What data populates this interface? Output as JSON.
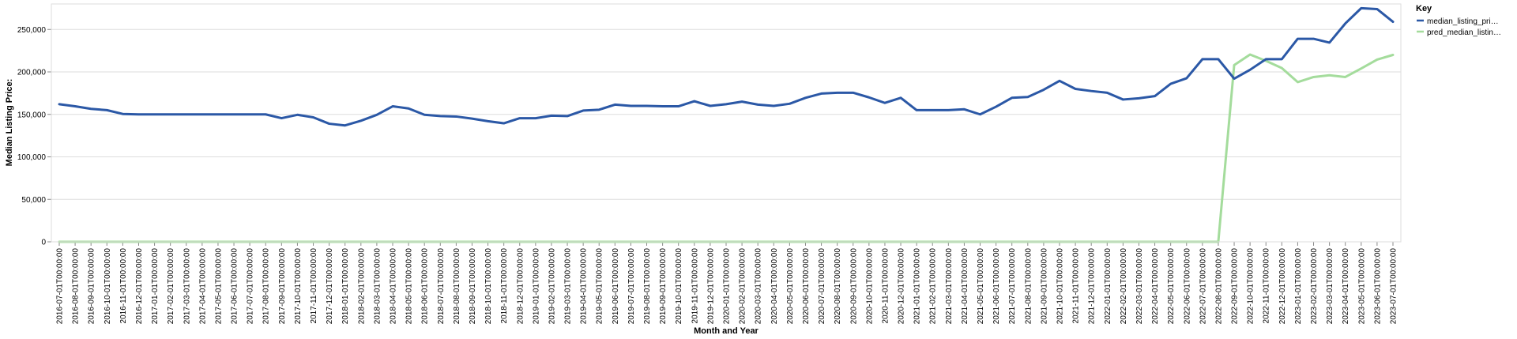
{
  "chart_data": {
    "type": "line",
    "xlabel": "Month and Year",
    "ylabel": "Median Listing Price:",
    "ylim": [
      0,
      280000
    ],
    "yticks": [
      0,
      50000,
      100000,
      150000,
      200000,
      250000
    ],
    "ytick_labels": [
      "0",
      "50,000",
      "100,000",
      "150,000",
      "200,000",
      "250,000"
    ],
    "grid": true,
    "legend": {
      "title": "Key",
      "position": "top-right",
      "items": [
        {
          "label": "median_listing_pri…",
          "color": "#2b58a6"
        },
        {
          "label": "pred_median_listin…",
          "color": "#a4dc9c"
        }
      ]
    },
    "x": [
      "2016-07-01T00:00:00",
      "2016-08-01T00:00:00",
      "2016-09-01T00:00:00",
      "2016-10-01T00:00:00",
      "2016-11-01T00:00:00",
      "2016-12-01T00:00:00",
      "2017-01-01T00:00:00",
      "2017-02-01T00:00:00",
      "2017-03-01T00:00:00",
      "2017-04-01T00:00:00",
      "2017-05-01T00:00:00",
      "2017-06-01T00:00:00",
      "2017-07-01T00:00:00",
      "2017-08-01T00:00:00",
      "2017-09-01T00:00:00",
      "2017-10-01T00:00:00",
      "2017-11-01T00:00:00",
      "2017-12-01T00:00:00",
      "2018-01-01T00:00:00",
      "2018-02-01T00:00:00",
      "2018-03-01T00:00:00",
      "2018-04-01T00:00:00",
      "2018-05-01T00:00:00",
      "2018-06-01T00:00:00",
      "2018-07-01T00:00:00",
      "2018-08-01T00:00:00",
      "2018-09-01T00:00:00",
      "2018-10-01T00:00:00",
      "2018-11-01T00:00:00",
      "2018-12-01T00:00:00",
      "2019-01-01T00:00:00",
      "2019-02-01T00:00:00",
      "2019-03-01T00:00:00",
      "2019-04-01T00:00:00",
      "2019-05-01T00:00:00",
      "2019-06-01T00:00:00",
      "2019-07-01T00:00:00",
      "2019-08-01T00:00:00",
      "2019-09-01T00:00:00",
      "2019-10-01T00:00:00",
      "2019-11-01T00:00:00",
      "2019-12-01T00:00:00",
      "2020-01-01T00:00:00",
      "2020-02-01T00:00:00",
      "2020-03-01T00:00:00",
      "2020-04-01T00:00:00",
      "2020-05-01T00:00:00",
      "2020-06-01T00:00:00",
      "2020-07-01T00:00:00",
      "2020-08-01T00:00:00",
      "2020-09-01T00:00:00",
      "2020-10-01T00:00:00",
      "2020-11-01T00:00:00",
      "2020-12-01T00:00:00",
      "2021-01-01T00:00:00",
      "2021-02-01T00:00:00",
      "2021-03-01T00:00:00",
      "2021-04-01T00:00:00",
      "2021-05-01T00:00:00",
      "2021-06-01T00:00:00",
      "2021-07-01T00:00:00",
      "2021-08-01T00:00:00",
      "2021-09-01T00:00:00",
      "2021-10-01T00:00:00",
      "2021-11-01T00:00:00",
      "2021-12-01T00:00:00",
      "2022-01-01T00:00:00",
      "2022-02-01T00:00:00",
      "2022-03-01T00:00:00",
      "2022-04-01T00:00:00",
      "2022-05-01T00:00:00",
      "2022-06-01T00:00:00",
      "2022-07-01T00:00:00",
      "2022-08-01T00:00:00",
      "2022-09-01T00:00:00",
      "2022-10-01T00:00:00",
      "2022-11-01T00:00:00",
      "2022-12-01T00:00:00",
      "2023-01-01T00:00:00",
      "2023-02-01T00:00:00",
      "2023-03-01T00:00:00",
      "2023-04-01T00:00:00",
      "2023-05-01T00:00:00",
      "2023-06-01T00:00:00",
      "2023-07-01T00:00:00"
    ],
    "series": [
      {
        "name": "median_listing_pri…",
        "color": "#2b58a6",
        "values": [
          162000,
          159500,
          156500,
          155000,
          150500,
          150000,
          150000,
          150000,
          150000,
          150000,
          150000,
          150000,
          150000,
          150000,
          145500,
          149500,
          146500,
          139000,
          137000,
          142500,
          149500,
          159500,
          157000,
          149500,
          148000,
          147500,
          145000,
          142000,
          139500,
          145500,
          145500,
          148500,
          148000,
          154500,
          155500,
          161500,
          160000,
          160000,
          159500,
          159500,
          165500,
          160000,
          162000,
          165000,
          161500,
          160000,
          162500,
          169500,
          174500,
          175500,
          175500,
          170000,
          163500,
          169500,
          155000,
          155000,
          155000,
          156000,
          150000,
          159000,
          169500,
          170500,
          179000,
          189500,
          180000,
          177500,
          175500,
          167500,
          169000,
          171500,
          186000,
          192500,
          215000,
          215000,
          192000,
          202500,
          215000,
          215000,
          239000,
          239000,
          234500,
          257000,
          275000,
          274000,
          259000
        ]
      },
      {
        "name": "pred_median_listin…",
        "color": "#a4dc9c",
        "values": [
          0,
          0,
          0,
          0,
          0,
          0,
          0,
          0,
          0,
          0,
          0,
          0,
          0,
          0,
          0,
          0,
          0,
          0,
          0,
          0,
          0,
          0,
          0,
          0,
          0,
          0,
          0,
          0,
          0,
          0,
          0,
          0,
          0,
          0,
          0,
          0,
          0,
          0,
          0,
          0,
          0,
          0,
          0,
          0,
          0,
          0,
          0,
          0,
          0,
          0,
          0,
          0,
          0,
          0,
          0,
          0,
          0,
          0,
          0,
          0,
          0,
          0,
          0,
          0,
          0,
          0,
          0,
          0,
          0,
          0,
          0,
          0,
          0,
          0,
          208000,
          220500,
          213000,
          204500,
          188000,
          194000,
          196000,
          194000,
          204000,
          214500,
          220000
        ]
      }
    ]
  }
}
